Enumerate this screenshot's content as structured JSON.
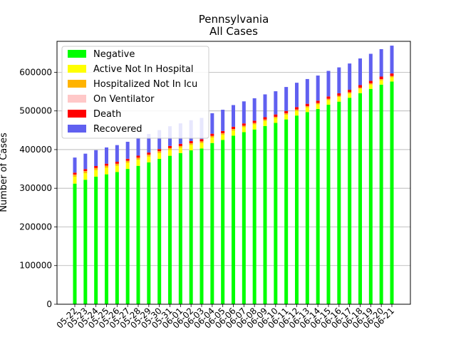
{
  "chart_data": {
    "type": "bar",
    "stacked": true,
    "title": "Pennsylvania",
    "subtitle": "All Cases",
    "xlabel": "",
    "ylabel": "Number of Cases",
    "ylim": [
      0,
      680000
    ],
    "yticks": [
      0,
      100000,
      200000,
      300000,
      400000,
      500000,
      600000
    ],
    "grid": "y",
    "legend_position": "top-left",
    "categories": [
      "05-22",
      "05-23",
      "05-24",
      "05-25",
      "05-26",
      "05-27",
      "05-28",
      "05-29",
      "05-30",
      "05-31",
      "06-01",
      "06-02",
      "06-03",
      "06-04",
      "06-05",
      "06-06",
      "06-07",
      "06-08",
      "06-09",
      "06-10",
      "06-11",
      "06-12",
      "06-13",
      "06-14",
      "06-15",
      "06-16",
      "06-17",
      "06-18",
      "06-19",
      "06-20",
      "06-21"
    ],
    "series": [
      {
        "name": "Negative",
        "color": "#00ff00",
        "values": [
          312000,
          322000,
          330000,
          336000,
          342000,
          350000,
          358000,
          367000,
          376000,
          384000,
          391000,
          398000,
          403000,
          417000,
          425000,
          436000,
          445000,
          452000,
          461000,
          469000,
          478000,
          488000,
          497000,
          505000,
          516000,
          524000,
          534000,
          546000,
          557000,
          568000,
          576000
        ]
      },
      {
        "name": "Active Not In Hospital",
        "color": "#ffff00",
        "values": [
          18000,
          17000,
          17000,
          17000,
          16000,
          16000,
          16000,
          15000,
          15000,
          15000,
          14000,
          14000,
          14000,
          14000,
          13000,
          13000,
          13000,
          13000,
          13000,
          12000,
          12000,
          12000,
          12000,
          12000,
          12000,
          12000,
          11000,
          11000,
          11000,
          11000,
          11000
        ]
      },
      {
        "name": "Hospitalized Not In Icu",
        "color": "#ffb300",
        "values": [
          5000,
          5000,
          5000,
          5000,
          5000,
          4500,
          4500,
          4500,
          4500,
          4500,
          4000,
          4000,
          4000,
          4000,
          4000,
          4000,
          3500,
          3500,
          3500,
          3500,
          3500,
          3500,
          3000,
          3000,
          3000,
          3000,
          3000,
          3000,
          3000,
          3000,
          3000
        ]
      },
      {
        "name": "On Ventilator",
        "color": "#ffc8c8",
        "values": [
          300,
          300,
          300,
          300,
          300,
          300,
          300,
          300,
          300,
          300,
          250,
          250,
          250,
          250,
          250,
          250,
          250,
          250,
          250,
          250,
          250,
          200,
          200,
          200,
          200,
          200,
          200,
          200,
          200,
          200,
          200
        ]
      },
      {
        "name": "Death",
        "color": "#ff0000",
        "values": [
          5100,
          5150,
          5200,
          5250,
          5300,
          5400,
          5450,
          5500,
          5550,
          5600,
          5650,
          5700,
          5750,
          5800,
          5850,
          5900,
          5950,
          6000,
          6050,
          6100,
          6150,
          6200,
          6250,
          6300,
          6350,
          6400,
          6450,
          6500,
          6550,
          6600,
          6650
        ]
      },
      {
        "name": "Recovered",
        "color": "#6060f0",
        "values": [
          39000,
          40000,
          41000,
          42000,
          43000,
          44000,
          46000,
          48000,
          49000,
          51000,
          53000,
          54000,
          55000,
          53000,
          55000,
          56000,
          57000,
          58000,
          59000,
          60000,
          62000,
          63000,
          64000,
          65000,
          66000,
          67000,
          68000,
          69000,
          70000,
          71000,
          72000
        ]
      }
    ]
  }
}
